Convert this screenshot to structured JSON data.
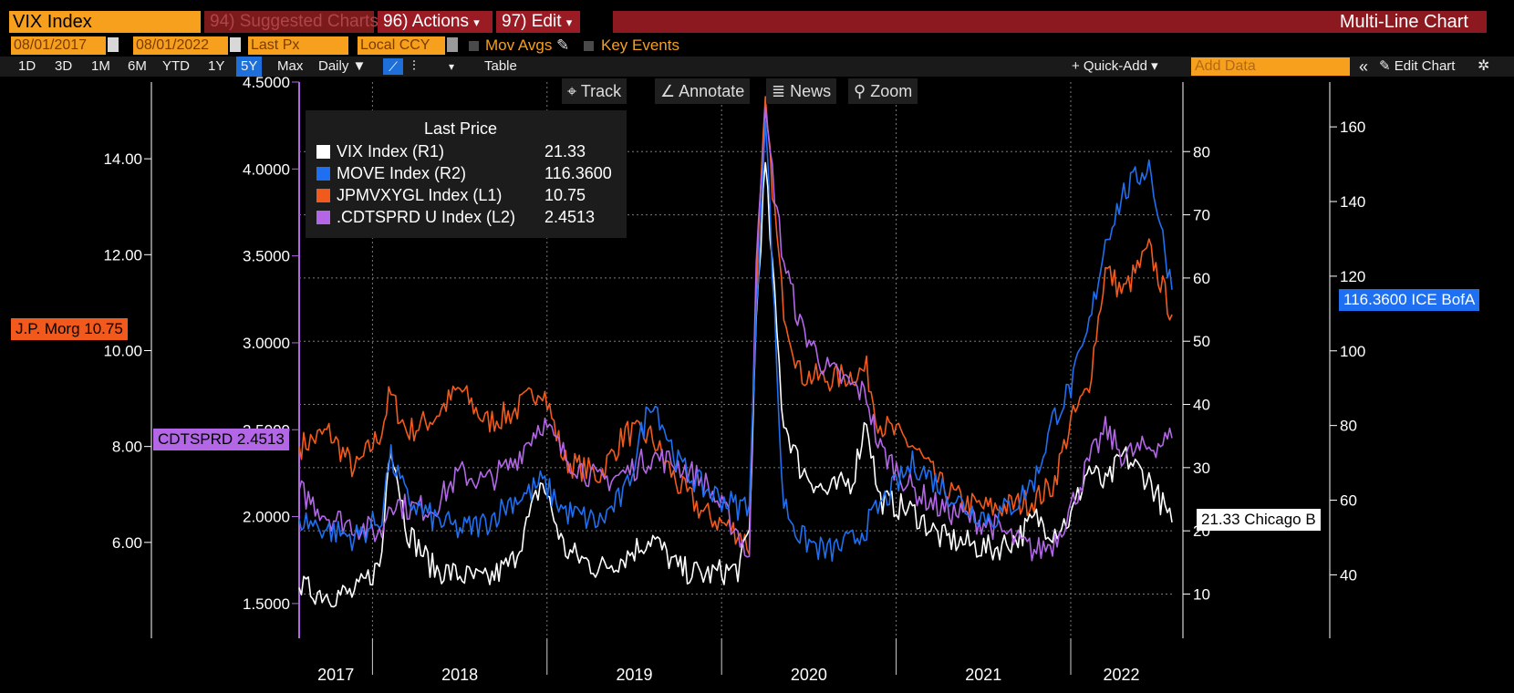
{
  "title_bar": {
    "security": "VIX Index",
    "suggested_charts": "94) Suggested Charts",
    "actions": "96) Actions",
    "edit": "97) Edit",
    "chart_name": "Multi-Line Chart",
    "dropdown_glyph": "▾"
  },
  "settings_bar": {
    "start_date": "08/01/2017",
    "end_date": "08/01/2022",
    "field": "Last Px",
    "currency": "Local CCY",
    "mov_avgs": "Mov Avgs",
    "key_events": "Key Events"
  },
  "timeframe_bar": {
    "buttons": [
      "1D",
      "3D",
      "1M",
      "6M",
      "YTD",
      "1Y",
      "5Y",
      "Max"
    ],
    "selected": "5Y",
    "frequency": "Daily ▼",
    "table": "Table",
    "quick_add": "+ Quick-Add ▾",
    "add_data_placeholder": "Add Data",
    "collapse": "«",
    "edit_chart": "Edit Chart",
    "settings_glyph": "✲"
  },
  "toolbar": {
    "track": "Track",
    "annotate": "Annotate",
    "news": "News",
    "zoom": "Zoom"
  },
  "legend": {
    "title": "Last Price",
    "items": [
      {
        "name": "VIX Index  (R1)",
        "value": "21.33",
        "color": "#ffffff"
      },
      {
        "name": "MOVE Index  (R2)",
        "value": "116.3600",
        "color": "#1f6ff2"
      },
      {
        "name": "JPMVXYGL Index  (L1)",
        "value": "10.75",
        "color": "#f25a1d"
      },
      {
        "name": ".CDTSPRD U Index  (L2)",
        "value": "2.4513",
        "color": "#b366e6"
      }
    ]
  },
  "flags": {
    "jpm": "J.P. Morg 10.75",
    "cdtsprd": "CDTSPRD 2.4513",
    "move": "116.3600 ICE BofA",
    "vix": "21.33 Chicago B"
  },
  "chart_data": {
    "type": "line",
    "x_axis": {
      "labels": [
        "2017",
        "2018",
        "2019",
        "2020",
        "2021",
        "2022"
      ],
      "range": [
        "2017-08-01",
        "2022-08-01"
      ]
    },
    "axes": {
      "L1": {
        "series": "JPMVXYGL Index",
        "ticks": [
          "6.00",
          "8.00",
          "10.00",
          "12.00",
          "14.00"
        ],
        "ylim": [
          4.0,
          15.6
        ]
      },
      "L2": {
        "series": ".CDTSPRD U Index",
        "ticks": [
          "1.5000",
          "2.0000",
          "2.5000",
          "3.0000",
          "3.5000",
          "4.0000",
          "4.5000"
        ],
        "ylim": [
          1.3,
          4.5
        ]
      },
      "R1": {
        "series": "VIX Index",
        "ticks": [
          "10",
          "20",
          "30",
          "40",
          "50",
          "60",
          "70",
          "80"
        ],
        "ylim": [
          3,
          91
        ]
      },
      "R2": {
        "series": "MOVE Index",
        "ticks": [
          "40",
          "60",
          "80",
          "100",
          "120",
          "140",
          "160"
        ],
        "ylim": [
          23,
          172
        ]
      }
    },
    "series": [
      {
        "name": "VIX Index",
        "axis": "R1",
        "color": "#ffffff",
        "t": [
          2017.58,
          2017.75,
          2017.9,
          2018.05,
          2018.1,
          2018.2,
          2018.35,
          2018.5,
          2018.65,
          2018.8,
          2018.9,
          2018.97,
          2019.1,
          2019.3,
          2019.45,
          2019.6,
          2019.75,
          2019.9,
          2020.1,
          2020.16,
          2020.2,
          2020.25,
          2020.35,
          2020.45,
          2020.6,
          2020.75,
          2020.83,
          2020.9,
          2021.1,
          2021.25,
          2021.4,
          2021.55,
          2021.7,
          2021.8,
          2021.9,
          2022.0,
          2022.1,
          2022.2,
          2022.3,
          2022.45,
          2022.58
        ],
        "v": [
          11,
          10,
          10,
          15,
          35,
          20,
          14,
          13,
          12,
          15,
          22,
          28,
          17,
          14,
          16,
          19,
          14,
          13,
          14,
          20,
          55,
          78,
          38,
          30,
          26,
          28,
          38,
          25,
          23,
          19,
          18,
          17,
          19,
          22,
          20,
          22,
          30,
          27,
          32,
          28,
          21.33
        ]
      },
      {
        "name": "MOVE Index",
        "axis": "R2",
        "color": "#1f6ff2",
        "t": [
          2017.58,
          2017.75,
          2017.9,
          2018.05,
          2018.1,
          2018.2,
          2018.35,
          2018.5,
          2018.65,
          2018.8,
          2018.9,
          2018.97,
          2019.1,
          2019.3,
          2019.45,
          2019.6,
          2019.75,
          2019.9,
          2020.1,
          2020.16,
          2020.2,
          2020.25,
          2020.35,
          2020.45,
          2020.6,
          2020.75,
          2020.83,
          2020.9,
          2021.1,
          2021.25,
          2021.4,
          2021.55,
          2021.7,
          2021.8,
          2021.9,
          2022.0,
          2022.1,
          2022.2,
          2022.3,
          2022.45,
          2022.58
        ],
        "v": [
          55,
          52,
          50,
          55,
          72,
          60,
          55,
          52,
          54,
          60,
          62,
          65,
          57,
          54,
          62,
          88,
          70,
          63,
          58,
          60,
          110,
          165,
          60,
          50,
          46,
          49,
          53,
          58,
          70,
          64,
          58,
          55,
          60,
          66,
          82,
          90,
          105,
          130,
          142,
          150,
          116.36
        ]
      },
      {
        "name": "JPMVXYGL Index",
        "axis": "L1",
        "color": "#f25a1d",
        "t": [
          2017.58,
          2017.75,
          2017.9,
          2018.05,
          2018.1,
          2018.2,
          2018.35,
          2018.5,
          2018.65,
          2018.8,
          2018.9,
          2018.97,
          2019.1,
          2019.3,
          2019.45,
          2019.6,
          2019.75,
          2019.9,
          2020.1,
          2020.16,
          2020.2,
          2020.25,
          2020.35,
          2020.45,
          2020.6,
          2020.75,
          2020.83,
          2020.9,
          2021.1,
          2021.25,
          2021.4,
          2021.55,
          2021.7,
          2021.8,
          2021.9,
          2022.0,
          2022.1,
          2022.2,
          2022.3,
          2022.45,
          2022.58
        ],
        "v": [
          8.0,
          8.3,
          7.5,
          8.3,
          9.1,
          8.3,
          8.6,
          9.2,
          8.5,
          8.7,
          9.0,
          9.3,
          7.7,
          7.4,
          8.3,
          8.2,
          7.2,
          6.6,
          6.2,
          5.9,
          11.5,
          15.1,
          11.0,
          9.5,
          9.4,
          9.5,
          9.6,
          8.5,
          8.0,
          7.2,
          6.8,
          6.7,
          6.8,
          6.9,
          7.2,
          8.5,
          9.2,
          11.7,
          11.2,
          12.1,
          10.75
        ]
      },
      {
        "name": ".CDTSPRD U Index",
        "axis": "L2",
        "color": "#b366e6",
        "t": [
          2017.58,
          2017.75,
          2017.9,
          2018.05,
          2018.1,
          2018.2,
          2018.35,
          2018.5,
          2018.65,
          2018.8,
          2018.9,
          2018.97,
          2019.1,
          2019.3,
          2019.45,
          2019.6,
          2019.75,
          2019.9,
          2020.1,
          2020.16,
          2020.2,
          2020.25,
          2020.35,
          2020.45,
          2020.6,
          2020.75,
          2020.83,
          2020.9,
          2021.1,
          2021.25,
          2021.4,
          2021.55,
          2021.7,
          2021.8,
          2021.9,
          2022.0,
          2022.1,
          2022.2,
          2022.3,
          2022.45,
          2022.58
        ],
        "v": [
          2.15,
          2.0,
          1.95,
          1.9,
          2.1,
          2.05,
          2.05,
          2.25,
          2.2,
          2.3,
          2.45,
          2.55,
          2.35,
          2.2,
          2.25,
          2.35,
          2.3,
          2.2,
          1.9,
          1.75,
          3.6,
          4.3,
          3.5,
          3.1,
          2.85,
          2.75,
          2.7,
          2.4,
          2.15,
          2.05,
          2.0,
          1.95,
          1.85,
          1.8,
          1.85,
          2.05,
          2.3,
          2.5,
          2.35,
          2.4,
          2.4513
        ]
      }
    ]
  }
}
